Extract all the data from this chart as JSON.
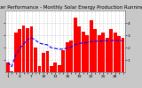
{
  "title": "Solar PV/Inverter Performance - Monthly Solar Energy Production Running Average",
  "bar_values": [
    0.8,
    0.1,
    3.2,
    3.5,
    3.8,
    3.6,
    3.7,
    2.0,
    0.5,
    1.6,
    1.7,
    0.5,
    0.8,
    0.6,
    1.8,
    2.4,
    2.6,
    4.4,
    3.7,
    3.3,
    3.0,
    4.2,
    3.5,
    3.0,
    3.2,
    2.8,
    3.5,
    3.2,
    2.9,
    2.8
  ],
  "running_avg": [
    0.8,
    0.45,
    1.37,
    1.9,
    2.28,
    2.65,
    2.8,
    2.6,
    2.35,
    2.27,
    2.22,
    1.98,
    1.92,
    1.85,
    1.88,
    1.96,
    2.04,
    2.24,
    2.33,
    2.38,
    2.4,
    2.49,
    2.51,
    2.52,
    2.54,
    2.55,
    2.57,
    2.57,
    2.57,
    2.56
  ],
  "bar_color": "#ff0000",
  "avg_color": "#0000ff",
  "bg_color": "#c8c8c8",
  "plot_bg": "#ffffff",
  "grid_color": "#aaaaaa",
  "ylim": [
    0,
    5
  ],
  "yticks": [
    1,
    2,
    3,
    4
  ],
  "title_fontsize": 4.0,
  "tick_fontsize": 3.2,
  "avg_linewidth": 0.8,
  "avg_linestyle": "--",
  "bar_width": 0.85
}
